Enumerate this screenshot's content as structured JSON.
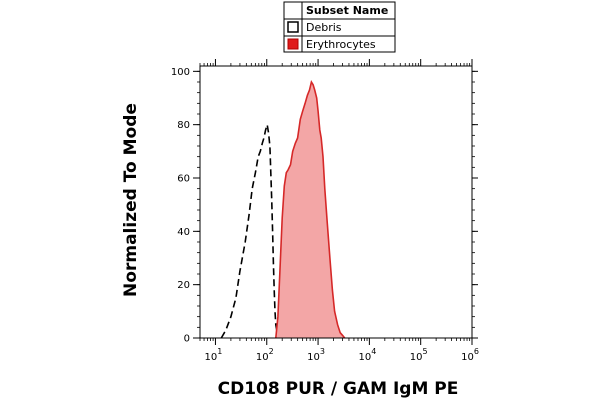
{
  "chart_data": {
    "type": "area",
    "xlabel": "CD108 PUR / GAM IgM PE",
    "ylabel": "Normalized To Mode",
    "x_scale": "log",
    "xlim": [
      5,
      1000000
    ],
    "ylim": [
      0,
      102
    ],
    "y_ticks": [
      0,
      20,
      40,
      60,
      80,
      100
    ],
    "x_ticks": [
      {
        "base": "10",
        "exp": "1",
        "value": 10
      },
      {
        "base": "10",
        "exp": "2",
        "value": 100
      },
      {
        "base": "10",
        "exp": "3",
        "value": 1000
      },
      {
        "base": "10",
        "exp": "4",
        "value": 10000
      },
      {
        "base": "10",
        "exp": "5",
        "value": 100000
      },
      {
        "base": "10",
        "exp": "6",
        "value": 1000000
      }
    ],
    "legend": {
      "title": "Subset Name",
      "position": "top-center",
      "entries": [
        "Debris",
        "Erythrocytes"
      ]
    },
    "series": [
      {
        "name": "Debris",
        "style": "dashed",
        "color": "#000000",
        "x": [
          13,
          16,
          20,
          25,
          30,
          38,
          45,
          52,
          60,
          68,
          75,
          82,
          88,
          95,
          102,
          108,
          115,
          120,
          125,
          130,
          135,
          140,
          145,
          150,
          160,
          170,
          185
        ],
        "y": [
          0,
          3,
          8,
          15,
          25,
          36,
          46,
          56,
          62,
          68,
          70,
          73,
          75,
          78,
          80,
          77,
          72,
          62,
          52,
          40,
          28,
          17,
          10,
          5,
          2,
          1,
          0
        ]
      },
      {
        "name": "Erythrocytes",
        "style": "filled",
        "color": "#d62828",
        "fill": "#f3a6a6",
        "x": [
          150,
          165,
          180,
          200,
          220,
          240,
          260,
          290,
          320,
          360,
          400,
          450,
          500,
          560,
          620,
          680,
          740,
          800,
          860,
          940,
          1000,
          1080,
          1150,
          1250,
          1350,
          1500,
          1700,
          1900,
          2100,
          2400,
          2700,
          3000,
          3300
        ],
        "y": [
          0,
          8,
          25,
          45,
          57,
          62,
          63,
          65,
          70,
          73,
          75,
          82,
          85,
          88,
          91,
          93,
          96,
          95,
          93,
          90,
          85,
          78,
          75,
          68,
          56,
          44,
          30,
          18,
          10,
          5,
          2,
          1,
          0
        ]
      }
    ]
  }
}
